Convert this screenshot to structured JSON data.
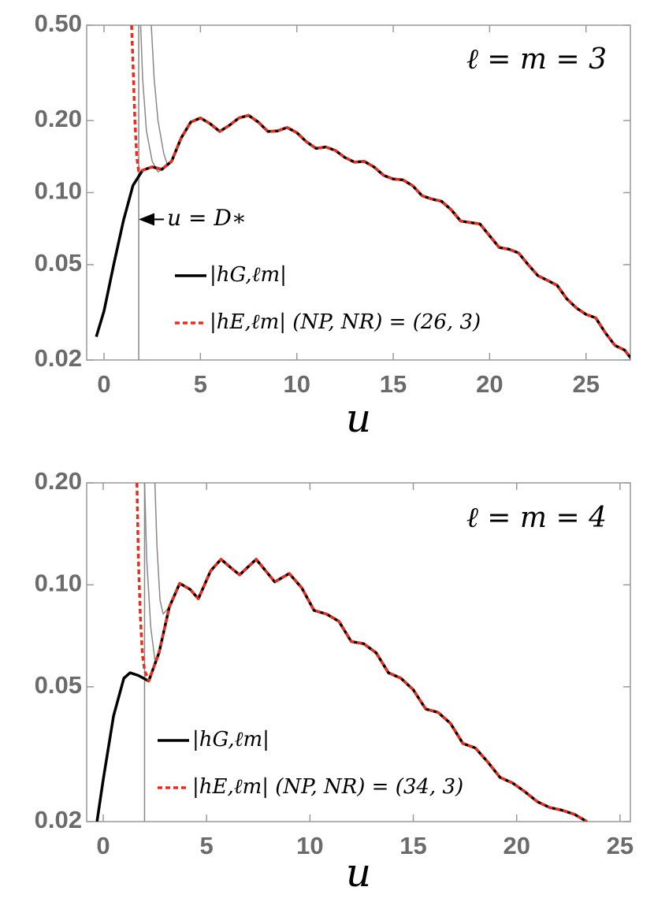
{
  "chart_data": [
    {
      "type": "line",
      "label": "ℓ = m = 3",
      "xlabel": "u",
      "log_y": true,
      "xlim": [
        -0.9,
        27.3
      ],
      "ylim": [
        0.02,
        0.5
      ],
      "xticks": [
        0,
        5,
        10,
        15,
        20,
        25
      ],
      "yticks": [
        0.02,
        0.05,
        {
          "value": 0.1,
          "label": "0.10"
        },
        {
          "value": 0.2,
          "label": "0.20"
        },
        {
          "value": 0.5,
          "label": "0.50"
        }
      ],
      "vline": 1.8,
      "vline_label": "u = D∗",
      "series": [
        {
          "color": "#888888",
          "width": 1.5,
          "x": [
            1.9,
            2.0,
            2.2,
            2.5,
            2.8,
            3.0
          ],
          "values": [
            0.5,
            0.3,
            0.18,
            0.135,
            0.122,
            0.125
          ]
        },
        {
          "color": "#888888",
          "width": 1.5,
          "x": [
            2.45,
            2.6,
            2.8,
            3.1,
            3.3,
            3.5
          ],
          "values": [
            0.5,
            0.3,
            0.2,
            0.145,
            0.13,
            0.135
          ]
        },
        {
          "name": "|hG,ℓm|",
          "color": "#000000",
          "width": 3.5,
          "x": [
            -0.4,
            0,
            0.5,
            1.0,
            1.5,
            2.0,
            2.5,
            3.0,
            3.5,
            4.0,
            4.5,
            5.0,
            5.5,
            6.0,
            6.5,
            7.0,
            7.5,
            8.0,
            8.5,
            9.0,
            9.5,
            10.0,
            10.5,
            11.0,
            11.5,
            12,
            12.5,
            13,
            13.5,
            14,
            14.5,
            15,
            15.5,
            16,
            16.5,
            17,
            17.5,
            18,
            18.5,
            19,
            19.5,
            20,
            20.5,
            21,
            21.5,
            22,
            22.5,
            23,
            23.5,
            24,
            24.5,
            25,
            25.5,
            26,
            26.5,
            27,
            27.4
          ],
          "values": [
            0.025,
            0.032,
            0.05,
            0.076,
            0.107,
            0.124,
            0.128,
            0.125,
            0.135,
            0.169,
            0.197,
            0.205,
            0.194,
            0.18,
            0.191,
            0.205,
            0.21,
            0.197,
            0.18,
            0.181,
            0.187,
            0.178,
            0.163,
            0.153,
            0.155,
            0.15,
            0.14,
            0.134,
            0.135,
            0.128,
            0.118,
            0.114,
            0.113,
            0.107,
            0.097,
            0.094,
            0.092,
            0.085,
            0.076,
            0.075,
            0.074,
            0.066,
            0.059,
            0.058,
            0.056,
            0.05,
            0.045,
            0.043,
            0.041,
            0.036,
            0.033,
            0.031,
            0.03,
            0.026,
            0.023,
            0.022,
            0.02
          ]
        },
        {
          "name": "|hE,ℓm| (NP, NR) = (26, 3)",
          "color": "#ee2a1b",
          "width": 3.5,
          "dashed": true,
          "x": [
            1.43,
            1.5,
            1.6,
            1.7,
            1.8,
            2.0,
            2.5,
            3.0,
            3.5,
            4.0,
            4.5,
            5.0,
            5.5,
            6.0,
            6.5,
            7.0,
            7.5,
            8.0,
            8.5,
            9.0,
            9.5,
            10.0,
            10.5,
            11.0,
            11.5,
            12,
            12.5,
            13,
            13.5,
            14,
            14.5,
            15,
            15.5,
            16,
            16.5,
            17,
            17.5,
            18,
            18.5,
            19,
            19.5,
            20,
            20.5,
            21,
            21.5,
            22,
            22.5,
            23,
            23.5,
            24,
            24.5,
            25,
            25.5,
            26,
            26.5,
            27,
            27.4
          ],
          "values": [
            0.5,
            0.35,
            0.2,
            0.14,
            0.122,
            0.124,
            0.128,
            0.125,
            0.135,
            0.169,
            0.197,
            0.205,
            0.194,
            0.18,
            0.191,
            0.205,
            0.21,
            0.197,
            0.18,
            0.181,
            0.187,
            0.178,
            0.163,
            0.153,
            0.155,
            0.15,
            0.14,
            0.134,
            0.135,
            0.128,
            0.118,
            0.114,
            0.113,
            0.107,
            0.097,
            0.094,
            0.092,
            0.085,
            0.076,
            0.075,
            0.074,
            0.066,
            0.059,
            0.058,
            0.056,
            0.05,
            0.045,
            0.043,
            0.041,
            0.036,
            0.033,
            0.031,
            0.03,
            0.026,
            0.023,
            0.022,
            0.02
          ]
        }
      ]
    },
    {
      "type": "line",
      "label": "ℓ = m = 4",
      "xlabel": "u",
      "log_y": true,
      "xlim": [
        -0.8,
        25.5
      ],
      "ylim": [
        0.02,
        0.2
      ],
      "xticks": [
        0,
        5,
        10,
        15,
        20,
        25
      ],
      "yticks": [
        0.02,
        0.05,
        {
          "value": 0.1,
          "label": "0.10"
        },
        {
          "value": 0.2,
          "label": "0.20"
        }
      ],
      "vline": 2.0,
      "series": [
        {
          "color": "#888888",
          "width": 1.5,
          "x": [
            2.0,
            2.1,
            2.3,
            2.5,
            2.7
          ],
          "values": [
            0.2,
            0.12,
            0.075,
            0.06,
            0.063
          ]
        },
        {
          "color": "#888888",
          "width": 1.5,
          "x": [
            2.5,
            2.6,
            2.75,
            2.9,
            3.2
          ],
          "values": [
            0.2,
            0.13,
            0.09,
            0.082,
            0.086
          ]
        },
        {
          "name": "|hG,ℓm|",
          "color": "#000000",
          "width": 3.5,
          "x": [
            -0.3,
            0,
            0.5,
            1.0,
            1.3,
            1.7,
            2.2,
            2.7,
            3.2,
            3.7,
            4.2,
            4.6,
            5.2,
            5.7,
            6.2,
            6.6,
            7.4,
            8.3,
            9.0,
            9.6,
            10.2,
            10.8,
            11.4,
            12.0,
            12.6,
            13.2,
            13.8,
            14.4,
            15.0,
            15.6,
            16.2,
            16.8,
            17.4,
            18.0,
            18.6,
            19.2,
            19.8,
            20.4,
            21.0,
            21.6,
            22.2,
            22.8,
            23.4
          ],
          "values": [
            0.02,
            0.0266,
            0.041,
            0.053,
            0.055,
            0.054,
            0.052,
            0.063,
            0.086,
            0.101,
            0.097,
            0.091,
            0.11,
            0.119,
            0.112,
            0.107,
            0.119,
            0.102,
            0.108,
            0.098,
            0.084,
            0.082,
            0.078,
            0.068,
            0.067,
            0.063,
            0.055,
            0.053,
            0.049,
            0.043,
            0.042,
            0.039,
            0.034,
            0.033,
            0.03,
            0.027,
            0.026,
            0.0245,
            0.0229,
            0.022,
            0.0216,
            0.021,
            0.02
          ]
        },
        {
          "name": "|hE,ℓm| (NP, NR) = (34, 3)",
          "color": "#ee2a1b",
          "width": 3.5,
          "dashed": true,
          "x": [
            1.63,
            1.7,
            1.8,
            1.9,
            2.0,
            2.2,
            2.7,
            3.2,
            3.7,
            4.2,
            4.6,
            5.2,
            5.7,
            6.2,
            6.6,
            7.4,
            8.3,
            9.0,
            9.6,
            10.2,
            10.8,
            11.4,
            12.0,
            12.6,
            13.2,
            13.8,
            14.4,
            15.0,
            15.6,
            16.2,
            16.8,
            17.4,
            18.0,
            18.6,
            19.2,
            19.8,
            20.4,
            21.0,
            21.6,
            22.2,
            22.8,
            23.4
          ],
          "values": [
            0.2,
            0.12,
            0.08,
            0.062,
            0.056,
            0.052,
            0.063,
            0.086,
            0.101,
            0.097,
            0.091,
            0.11,
            0.119,
            0.112,
            0.107,
            0.119,
            0.102,
            0.108,
            0.098,
            0.084,
            0.082,
            0.078,
            0.068,
            0.067,
            0.063,
            0.055,
            0.053,
            0.049,
            0.043,
            0.042,
            0.039,
            0.034,
            0.033,
            0.03,
            0.027,
            0.026,
            0.0245,
            0.0229,
            0.022,
            0.0216,
            0.021,
            0.02
          ]
        }
      ]
    }
  ]
}
